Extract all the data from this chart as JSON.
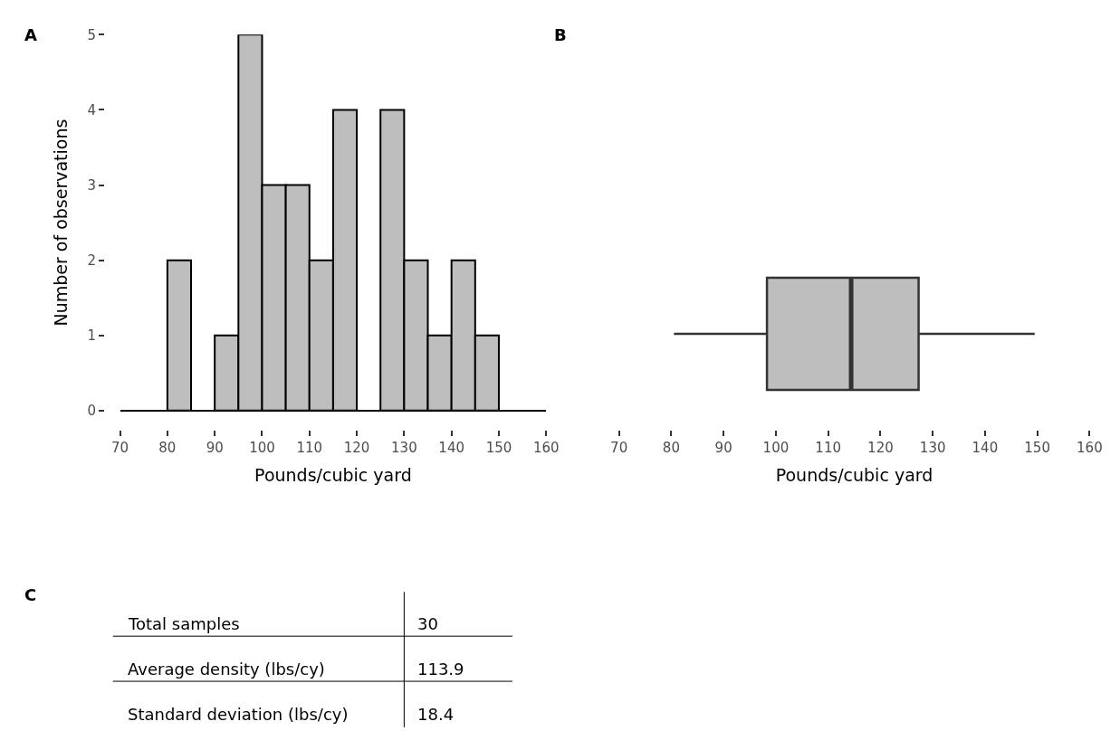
{
  "chart_data": [
    {
      "type": "histogram",
      "title": "A",
      "xlabel": "Pounds/cubic yard",
      "ylabel": "Number of observations",
      "color": "#bebebe",
      "bins": [
        70,
        75,
        80,
        85,
        90,
        95,
        100,
        105,
        110,
        115,
        120,
        125,
        130,
        135,
        140,
        145,
        150,
        155,
        160
      ],
      "values": [
        0,
        0,
        2,
        0,
        1,
        5,
        3,
        3,
        2,
        4,
        0,
        4,
        2,
        1,
        2,
        1,
        0,
        0
      ],
      "xlim": [
        70,
        160
      ],
      "xticks": [
        70,
        80,
        90,
        100,
        110,
        120,
        130,
        140,
        150,
        160
      ],
      "ylim": [
        0,
        5
      ],
      "yticks": [
        0,
        1,
        2,
        3,
        4,
        5
      ]
    },
    {
      "type": "box",
      "title": "B",
      "xlabel": "Pounds/cubic yard",
      "orientation": "horizontal",
      "color": "#bebebe",
      "boxes": [
        {
          "low": 80.5,
          "q1": 98.3,
          "median": 114.4,
          "q3": 127.3,
          "high": 149.5
        }
      ],
      "xlim": [
        70,
        160
      ],
      "xticks": [
        70,
        80,
        90,
        100,
        110,
        120,
        130,
        140,
        150,
        160
      ],
      "tick_labels": "x"
    },
    {
      "type": "other",
      "title": "C",
      "annotations": [
        "Total samples",
        "30",
        "Average density (lbs/cy)",
        "113.9",
        "Standard deviation (lbs/cy)",
        "18.4"
      ]
    }
  ]
}
